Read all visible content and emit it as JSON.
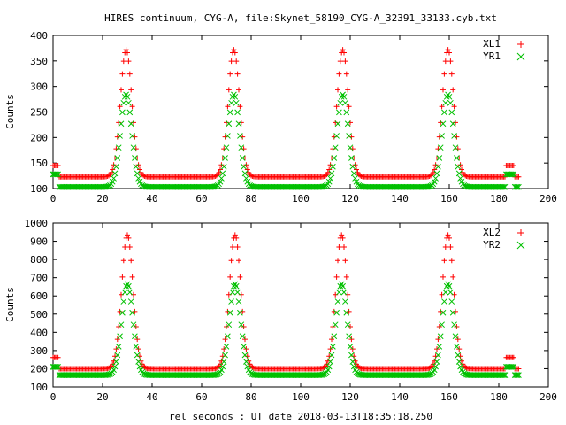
{
  "figure": {
    "title": "HIRES continuum, CYG-A, file:Skynet_58190_CYG-A_32391_33133.cyb.txt",
    "xlabel": "rel seconds : UT date 2018-03-13T18:35:18.250"
  },
  "chart_data": [
    {
      "type": "scatter",
      "ylabel": "Counts",
      "xlim": [
        0,
        200
      ],
      "ylim": [
        100,
        400
      ],
      "xticks": [
        0,
        20,
        40,
        60,
        80,
        100,
        120,
        140,
        160,
        180,
        200
      ],
      "yticks": [
        100,
        150,
        200,
        250,
        300,
        350,
        400
      ],
      "grid": false,
      "legend_position": "top-right",
      "x_range_sampled": [
        0,
        188
      ],
      "x_step": 0.5,
      "peak_centers": [
        29.5,
        73,
        117,
        159.5
      ],
      "peak_width": 2.3,
      "cal_intervals": [
        [
          0,
          2
        ],
        [
          183,
          186
        ]
      ],
      "series": [
        {
          "name": "XL1",
          "marker": "+",
          "color": "#ff0000",
          "baseline": 123,
          "peak": 372,
          "cal_level": 145
        },
        {
          "name": "YR1",
          "marker": "x",
          "color": "#00c000",
          "baseline": 103,
          "peak": 284,
          "cal_level": 128
        }
      ]
    },
    {
      "type": "scatter",
      "ylabel": "Counts",
      "xlim": [
        0,
        200
      ],
      "ylim": [
        100,
        1000
      ],
      "xticks": [
        0,
        20,
        40,
        60,
        80,
        100,
        120,
        140,
        160,
        180,
        200
      ],
      "yticks": [
        100,
        200,
        300,
        400,
        500,
        600,
        700,
        800,
        900,
        1000
      ],
      "grid": false,
      "legend_position": "top-right",
      "x_range_sampled": [
        0,
        188
      ],
      "x_step": 0.5,
      "peak_centers": [
        30,
        73.5,
        116.5,
        159.5
      ],
      "peak_width": 2.3,
      "cal_intervals": [
        [
          0,
          2
        ],
        [
          183,
          186
        ]
      ],
      "series": [
        {
          "name": "XL2",
          "marker": "+",
          "color": "#ff0000",
          "baseline": 200,
          "peak": 935,
          "cal_level": 262
        },
        {
          "name": "YR2",
          "marker": "x",
          "color": "#00c000",
          "baseline": 165,
          "peak": 665,
          "cal_level": 210
        }
      ]
    }
  ]
}
